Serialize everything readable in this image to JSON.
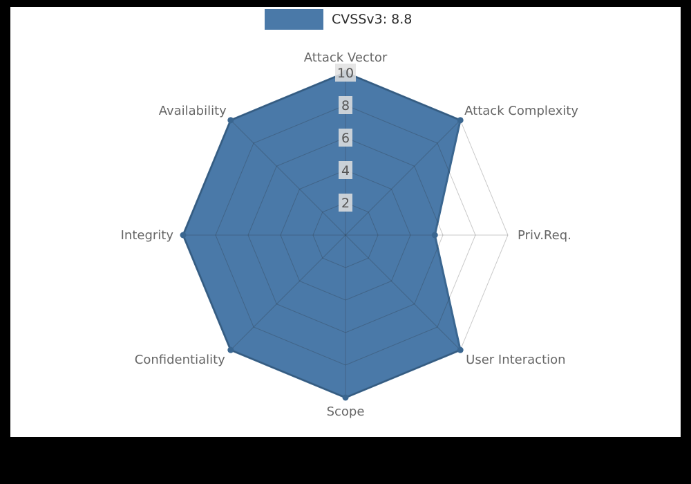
{
  "figure": {
    "page_background": "#000000",
    "plot_background": "#ffffff"
  },
  "legend": {
    "label": "CVSSv3: 8.8",
    "swatch_color": "#4a79a8"
  },
  "chart_data": {
    "type": "radar",
    "title": "CVSSv3: 8.8",
    "categories": [
      "Attack Vector",
      "Attack Complexity",
      "Priv.Req.",
      "User Interaction",
      "Scope",
      "Confidentiality",
      "Integrity",
      "Availability"
    ],
    "series": [
      {
        "name": "CVSSv3: 8.8",
        "values": [
          10,
          10,
          5.5,
          10,
          10,
          10,
          10,
          10
        ],
        "fill_color": "#4a79a8",
        "edge_color": "#3a6690",
        "marker_color": "#3a6690"
      }
    ],
    "radial_ticks": [
      2,
      4,
      6,
      8,
      10
    ],
    "range": [
      0,
      10
    ],
    "grid": true,
    "grid_color": "rgba(40,40,40,0.25)",
    "axis_label_color": "#666666",
    "tick_label_color": "#555555",
    "tick_box_color": "rgba(225,225,225,0.85)",
    "legend_position": "top-center"
  }
}
